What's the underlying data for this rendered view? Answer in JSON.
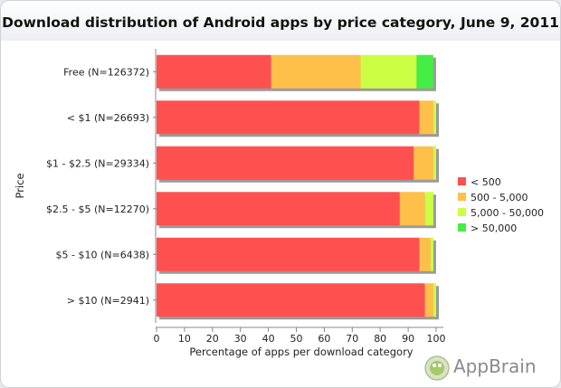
{
  "chart_data": {
    "type": "bar",
    "orientation": "horizontal",
    "stacked": true,
    "title": "Download distribution of Android apps by price category, June 9, 2011",
    "xlabel": "Percentage of apps per download category",
    "ylabel": "Price",
    "xlim": [
      0,
      100
    ],
    "xticks": [
      0,
      10,
      20,
      30,
      40,
      50,
      60,
      70,
      80,
      90,
      100
    ],
    "categories": [
      "Free (N=126372)",
      "< $1 (N=26693)",
      "$1 - $2.5 (N=29334)",
      "$2.5 - $5 (N=12270)",
      "$5 - $10 (N=6438)",
      "> $10 (N=2941)"
    ],
    "series": [
      {
        "name": "< 500",
        "color": "#ff5050",
        "values": [
          41,
          94,
          92,
          87,
          94,
          96
        ]
      },
      {
        "name": "500 - 5,000",
        "color": "#ffc04a",
        "values": [
          32,
          5,
          7,
          9,
          4,
          3
        ]
      },
      {
        "name": "5,000 - 50,000",
        "color": "#ccff44",
        "values": [
          20,
          1,
          1,
          3,
          1,
          1
        ]
      },
      {
        "name": "> 50,000",
        "color": "#44ee44",
        "values": [
          6,
          0,
          0,
          0,
          0,
          0
        ]
      }
    ],
    "legend_position": "right",
    "grid": false
  },
  "branding": {
    "logo_text": "AppBrain"
  }
}
